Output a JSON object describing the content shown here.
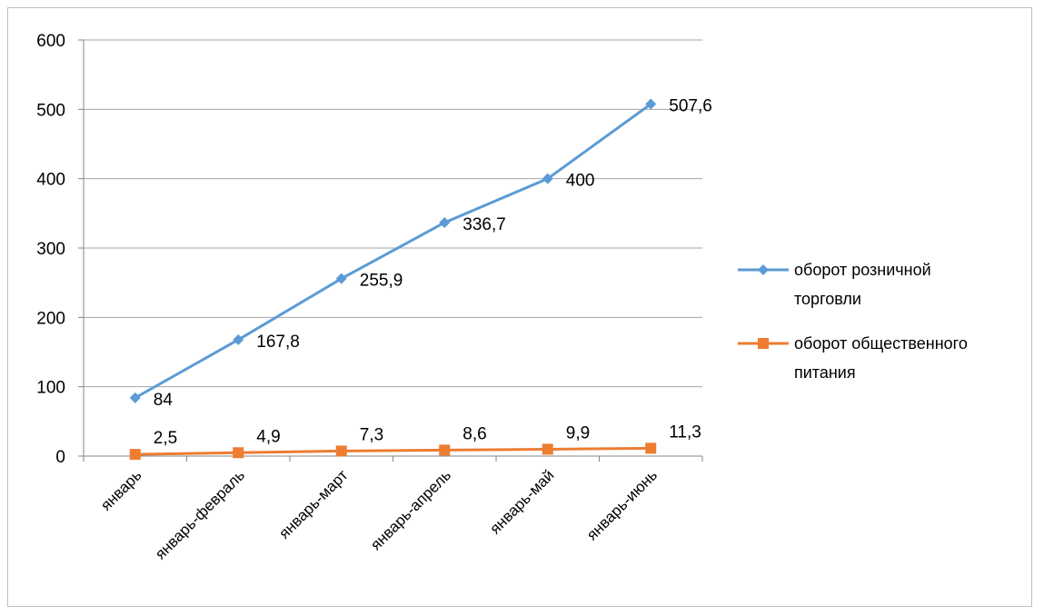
{
  "chart_data": {
    "type": "line",
    "categories": [
      "январь",
      "январь-февраль",
      "январь-март",
      "январь-апрель",
      "январь-май",
      "январь-июнь"
    ],
    "series": [
      {
        "name": "оборот розничной торговли",
        "legend_lines": [
          "оборот розничной",
          "торговли"
        ],
        "values": [
          84,
          167.8,
          255.9,
          336.7,
          400,
          507.6
        ],
        "labels": [
          "84",
          "167,8",
          "255,9",
          "336,7",
          "400",
          "507,6"
        ],
        "color": "#5B9BD5",
        "marker": "diamond"
      },
      {
        "name": "оборот общественного питания",
        "legend_lines": [
          "оборот общественного",
          "питания"
        ],
        "values": [
          2.5,
          4.9,
          7.3,
          8.6,
          9.9,
          11.3
        ],
        "labels": [
          "2,5",
          "4,9",
          "7,3",
          "8,6",
          "9,9",
          "11,3"
        ],
        "color": "#ED7D31",
        "marker": "square"
      }
    ],
    "ylim": [
      0,
      600
    ],
    "yticks": [
      0,
      100,
      200,
      300,
      400,
      500,
      600
    ],
    "grid": true,
    "legend": "right"
  }
}
